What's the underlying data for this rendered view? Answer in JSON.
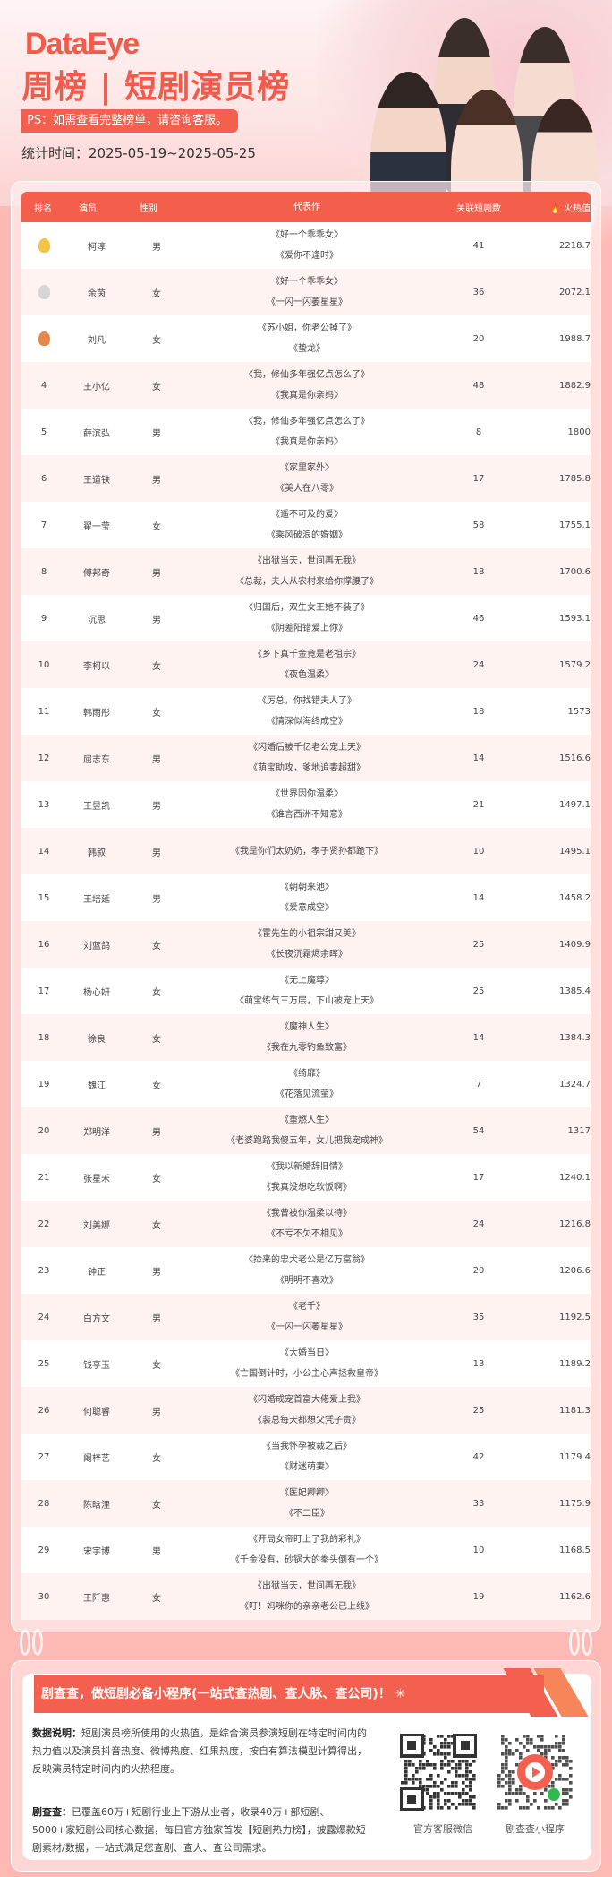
{
  "header": {
    "logo": "DataEye",
    "title": "周榜 | 短剧演员榜",
    "notice": "PS：如需查看完整榜单，请咨询客服。",
    "period_label": "统计时间：",
    "period": "2025-05-19~2025-05-25"
  },
  "table": {
    "columns": [
      "排名",
      "演员",
      "性别",
      "代表作",
      "关联短剧数",
      "火热值"
    ],
    "heat_icon": "flame-icon",
    "rows": [
      {
        "rank": "1",
        "medal": "gold",
        "name": "柯淳",
        "gender": "男",
        "works": [
          "《好一个乖乖女》",
          "《爱你不逢时》"
        ],
        "count": "41",
        "heat": "2218.7"
      },
      {
        "rank": "2",
        "medal": "silver",
        "name": "余茵",
        "gender": "女",
        "works": [
          "《好一个乖乖女》",
          "《一闪一闪萎星星》"
        ],
        "count": "36",
        "heat": "2072.1"
      },
      {
        "rank": "3",
        "medal": "bronze",
        "name": "刘凡",
        "gender": "女",
        "works": [
          "《苏小姐，你老公掉了》",
          "《蛰龙》"
        ],
        "count": "20",
        "heat": "1988.7"
      },
      {
        "rank": "4",
        "name": "王小亿",
        "gender": "女",
        "works": [
          "《我，修仙多年强亿点怎么了》",
          "《我真是你亲妈》"
        ],
        "count": "48",
        "heat": "1882.9"
      },
      {
        "rank": "5",
        "name": "薛滨弘",
        "gender": "男",
        "works": [
          "《我，修仙多年强亿点怎么了》",
          "《我真是你亲妈》"
        ],
        "count": "8",
        "heat": "1800"
      },
      {
        "rank": "6",
        "name": "王道铁",
        "gender": "男",
        "works": [
          "《家里家外》",
          "《美人在八零》"
        ],
        "count": "17",
        "heat": "1785.8"
      },
      {
        "rank": "7",
        "name": "翟一莹",
        "gender": "女",
        "works": [
          "《遥不可及的爱》",
          "《乘风破浪的婚姻》"
        ],
        "count": "58",
        "heat": "1755.1"
      },
      {
        "rank": "8",
        "name": "傅邦奇",
        "gender": "男",
        "works": [
          "《出狱当天，世间再无我》",
          "《总裁，夫人从农村来给你撑腰了》"
        ],
        "count": "18",
        "heat": "1700.6"
      },
      {
        "rank": "9",
        "name": "沉思",
        "gender": "男",
        "works": [
          "《归国后，双生女王她不装了》",
          "《阴差阳错爱上你》"
        ],
        "count": "46",
        "heat": "1593.1"
      },
      {
        "rank": "10",
        "name": "李柯以",
        "gender": "女",
        "works": [
          "《乡下真千金竟是老祖宗》",
          "《夜色温柔》"
        ],
        "count": "24",
        "heat": "1579.2"
      },
      {
        "rank": "11",
        "name": "韩雨彤",
        "gender": "女",
        "works": [
          "《厉总，你找错夫人了》",
          "《情深似海终成空》"
        ],
        "count": "18",
        "heat": "1573"
      },
      {
        "rank": "12",
        "name": "屈志东",
        "gender": "男",
        "works": [
          "《闪婚后被千亿老公宠上天》",
          "《萌宝助攻，爹地追妻超甜》"
        ],
        "count": "14",
        "heat": "1516.6"
      },
      {
        "rank": "13",
        "name": "王昱凯",
        "gender": "男",
        "works": [
          "《世界因你温柔》",
          "《谁言西洲不知意》"
        ],
        "count": "21",
        "heat": "1497.1"
      },
      {
        "rank": "14",
        "name": "韩叙",
        "gender": "男",
        "works": [
          "《我是你们太奶奶，孝子贤孙都跪下》"
        ],
        "count": "10",
        "heat": "1495.1"
      },
      {
        "rank": "15",
        "name": "王培延",
        "gender": "男",
        "works": [
          "《朝朝来池》",
          "《爱意成空》"
        ],
        "count": "14",
        "heat": "1458.2"
      },
      {
        "rank": "16",
        "name": "刘蓝鸽",
        "gender": "女",
        "works": [
          "《霍先生的小祖宗甜又美》",
          "《长夜沉霜烬余晖》"
        ],
        "count": "25",
        "heat": "1409.9"
      },
      {
        "rank": "17",
        "name": "杨心妍",
        "gender": "女",
        "works": [
          "《无上魔尊》",
          "《萌宝练气三万层，下山被宠上天》"
        ],
        "count": "25",
        "heat": "1385.4"
      },
      {
        "rank": "18",
        "name": "徐良",
        "gender": "女",
        "works": [
          "《魔神人生》",
          "《我在九零钓鱼致富》"
        ],
        "count": "14",
        "heat": "1384.3"
      },
      {
        "rank": "19",
        "name": "魏江",
        "gender": "女",
        "works": [
          "《绮靡》",
          "《花落见流萤》"
        ],
        "count": "7",
        "heat": "1324.7"
      },
      {
        "rank": "20",
        "name": "郑明洋",
        "gender": "男",
        "works": [
          "《重燃人生》",
          "《老婆跑路我傻五年，女儿把我宠成神》"
        ],
        "count": "54",
        "heat": "1317"
      },
      {
        "rank": "21",
        "name": "张星禾",
        "gender": "女",
        "works": [
          "《我以新婚辞旧情》",
          "《我真没想吃软饭啊》"
        ],
        "count": "17",
        "heat": "1240.1"
      },
      {
        "rank": "22",
        "name": "刘美娜",
        "gender": "女",
        "works": [
          "《我曾被你温柔以待》",
          "《不亏不欠不相见》"
        ],
        "count": "24",
        "heat": "1216.8"
      },
      {
        "rank": "23",
        "name": "钟正",
        "gender": "男",
        "works": [
          "《捡来的忠犬老公是亿万富翁》",
          "《明明不喜欢》"
        ],
        "count": "20",
        "heat": "1206.6"
      },
      {
        "rank": "24",
        "name": "白方文",
        "gender": "男",
        "works": [
          "《老千》",
          "《一闪一闪萎星星》"
        ],
        "count": "35",
        "heat": "1192.5"
      },
      {
        "rank": "25",
        "name": "钱亭玉",
        "gender": "女",
        "works": [
          "《大婚当日》",
          "《亡国倒计时，小公主心声拯救皇帝》"
        ],
        "count": "13",
        "heat": "1189.2"
      },
      {
        "rank": "26",
        "name": "何聪睿",
        "gender": "男",
        "works": [
          "《闪婚成宠首富大佬爱上我》",
          "《裴总每天都想父凭子贵》"
        ],
        "count": "25",
        "heat": "1181.3"
      },
      {
        "rank": "27",
        "name": "阚梓艺",
        "gender": "女",
        "works": [
          "《当我怀孕被裁之后》",
          "《财迷萌妻》"
        ],
        "count": "42",
        "heat": "1179.4"
      },
      {
        "rank": "28",
        "name": "陈晗浬",
        "gender": "女",
        "works": [
          "《医妃卿卿》",
          "《不二臣》"
        ],
        "count": "33",
        "heat": "1175.9"
      },
      {
        "rank": "29",
        "name": "宋宇博",
        "gender": "男",
        "works": [
          "《开局女帝盯上了我的彩礼》",
          "《千金没有，砂锅大的拳头倒有一个》"
        ],
        "count": "10",
        "heat": "1168.5"
      },
      {
        "rank": "30",
        "name": "王阡惠",
        "gender": "女",
        "works": [
          "《出狱当天，世间再无我》",
          "《叮！妈咪你的亲亲老公已上线》"
        ],
        "count": "19",
        "heat": "1162.6"
      }
    ]
  },
  "footer": {
    "banner": "剧查查，做短剧必备小程序(一站式查热剧、查人脉、查公司)！",
    "desc_label": "数据说明：",
    "desc": "短剧演员榜所使用的火热值，是综合演员参演短剧在特定时间内的热力值以及演员抖音热度、微博热度、红果热度，按自有算法模型计算得出，反映演员特定时间内的火热程度。",
    "about_label": "剧查查：",
    "about": "已覆盖60万+短剧行业上下游从业者，收录40万+部短剧、5000+家短剧公司核心数据，每日官方独家首发【短剧热力榜】，披露爆款短剧素材/数据，一站式满足您查剧、查人、查公司需求。",
    "qr1_label": "官方客服微信",
    "qr2_label": "剧查查小程序"
  },
  "colors": {
    "accent": "#f45f4c",
    "gold": "#f5c542",
    "silver": "#d6d6d6",
    "bronze": "#e9874a",
    "background": "#fdb9b4"
  }
}
